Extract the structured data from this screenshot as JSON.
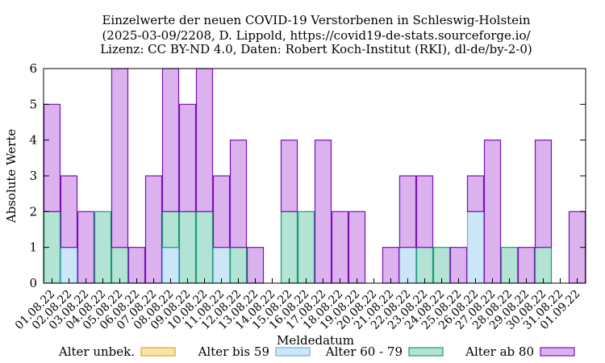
{
  "chart_data": {
    "type": "bar",
    "stacked": true,
    "title_lines": [
      "Einzelwerte der neuen COVID-19 Verstorbenen in Schleswig-Holstein",
      "(2025-03-09/2208, D. Lippold, https://covid19-de-stats.sourceforge.io/",
      "Lizenz: CC BY-ND 4.0, Daten: Robert Koch-Institut (RKI), dl-de/by-2-0)"
    ],
    "xlabel": "Meldedatum",
    "ylabel": "Absolute Werte",
    "ylim": [
      0,
      6
    ],
    "yticks": [
      0,
      1,
      2,
      3,
      4,
      5,
      6
    ],
    "grid": false,
    "categories": [
      "01.08.22",
      "02.08.22",
      "03.08.22",
      "04.08.22",
      "05.08.22",
      "06.08.22",
      "07.08.22",
      "08.08.22",
      "09.08.22",
      "10.08.22",
      "11.08.22",
      "12.08.22",
      "13.08.22",
      "14.08.22",
      "15.08.22",
      "16.08.22",
      "17.08.22",
      "18.08.22",
      "19.08.22",
      "20.08.22",
      "21.08.22",
      "22.08.22",
      "23.08.22",
      "24.08.22",
      "25.08.22",
      "26.08.22",
      "27.08.22",
      "28.08.22",
      "29.08.22",
      "30.08.22",
      "31.08.22",
      "01.09.22"
    ],
    "series": [
      {
        "name": "Alter unbek.",
        "fill": "#fbe2a6",
        "stroke": "#dba82a",
        "values": [
          0,
          0,
          0,
          0,
          0,
          0,
          0,
          0,
          0,
          0,
          0,
          0,
          0,
          0,
          0,
          0,
          0,
          0,
          0,
          0,
          0,
          0,
          0,
          0,
          0,
          0,
          0,
          0,
          0,
          0,
          0,
          0
        ]
      },
      {
        "name": "Alter bis 59",
        "fill": "#cde6f7",
        "stroke": "#69b2df",
        "values": [
          0,
          1,
          0,
          0,
          0,
          0,
          0,
          1,
          0,
          0,
          1,
          0,
          0,
          0,
          0,
          0,
          0,
          0,
          0,
          0,
          0,
          1,
          0,
          0,
          0,
          2,
          0,
          0,
          0,
          0,
          0,
          0
        ]
      },
      {
        "name": "Alter 60 - 79",
        "fill": "#b2e3d4",
        "stroke": "#1c9a78",
        "values": [
          2,
          0,
          0,
          2,
          1,
          0,
          0,
          1,
          2,
          2,
          0,
          1,
          0,
          0,
          2,
          2,
          0,
          0,
          0,
          0,
          0,
          0,
          1,
          1,
          0,
          0,
          0,
          1,
          0,
          1,
          0,
          0
        ]
      },
      {
        "name": "Alter ab 80",
        "fill": "#dcb2ee",
        "stroke": "#7a10b6",
        "values": [
          3,
          2,
          2,
          0,
          5,
          1,
          3,
          4,
          3,
          4,
          2,
          3,
          1,
          0,
          2,
          0,
          4,
          2,
          2,
          0,
          1,
          2,
          2,
          0,
          1,
          1,
          4,
          0,
          1,
          3,
          0,
          2
        ]
      }
    ],
    "legend_position": "bottom"
  }
}
